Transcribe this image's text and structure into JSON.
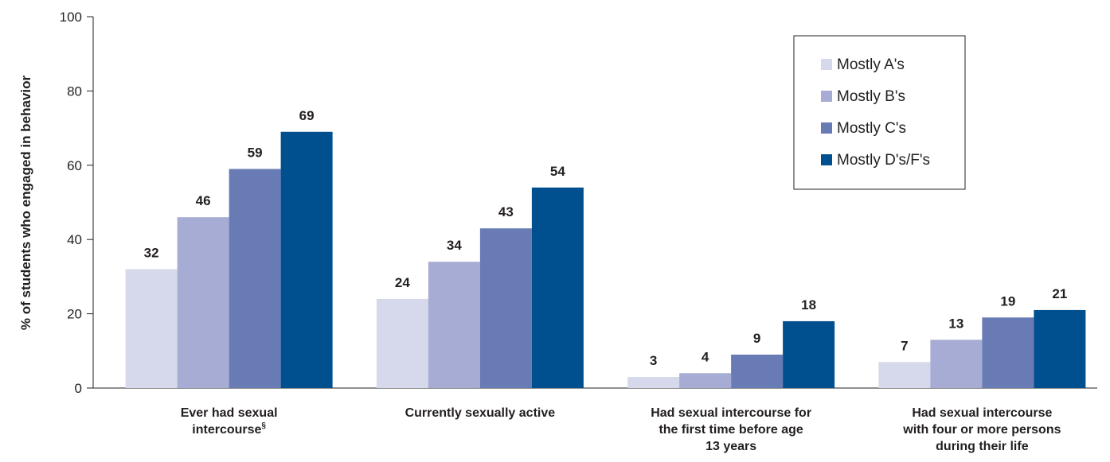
{
  "chart_data": {
    "type": "bar",
    "title": "",
    "ylabel": "% of students who engaged in behavior",
    "xlabel": "",
    "ylim": [
      0,
      100
    ],
    "yticks": [
      0,
      20,
      40,
      60,
      80,
      100
    ],
    "grid": false,
    "legend_position": "top-right",
    "categories": [
      {
        "lines": [
          "Ever had sexual",
          "intercourse"
        ],
        "superscript": "§"
      },
      {
        "lines": [
          "Currently sexually active"
        ],
        "superscript": ""
      },
      {
        "lines": [
          "Had sexual intercourse for",
          "the first time before age",
          "13 years"
        ],
        "superscript": ""
      },
      {
        "lines": [
          "Had sexual intercourse",
          "with four or more persons",
          "during their life"
        ],
        "superscript": ""
      }
    ],
    "series": [
      {
        "name": "Mostly A's",
        "color": "#d5d9eb",
        "values": [
          32,
          24,
          3,
          7
        ]
      },
      {
        "name": "Mostly B's",
        "color": "#a6acd3",
        "values": [
          46,
          34,
          4,
          13
        ]
      },
      {
        "name": "Mostly C's",
        "color": "#687bb4",
        "values": [
          59,
          43,
          9,
          19
        ]
      },
      {
        "name": "Mostly D's/F's",
        "color": "#004f8f",
        "values": [
          69,
          54,
          18,
          21
        ]
      }
    ]
  }
}
